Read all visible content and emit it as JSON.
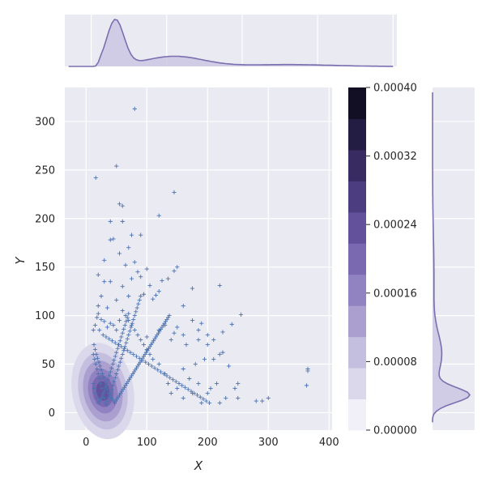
{
  "chart_data": {
    "type": "scatter",
    "title": "",
    "xlabel": "X",
    "ylabel": "Y",
    "xlim": [
      -35,
      405
    ],
    "ylim": [
      -18,
      335
    ],
    "xticks": [
      0,
      100,
      200,
      300,
      400
    ],
    "yticks": [
      0,
      50,
      100,
      150,
      200,
      250,
      300
    ],
    "grid": true,
    "marker": "+",
    "colors": {
      "panel_bg": "#eaeaf2",
      "grid": "#ffffff",
      "points": "#4c72b0",
      "kde_line": "#7b6fb0",
      "kde_fill": "#c8c2e0"
    },
    "colorbar": {
      "ticks": [
        "0.00000",
        "0.00008",
        "0.00016",
        "0.00024",
        "0.00032",
        "0.00040"
      ],
      "levels": [
        "#f1eff7",
        "#dcd8eb",
        "#c5bfdf",
        "#ab9fd0",
        "#9183c2",
        "#7a68b0",
        "#63519c",
        "#4c3c80",
        "#372b62",
        "#241d43",
        "#120f24"
      ]
    },
    "points": [
      [
        80,
        313
      ],
      [
        16,
        242
      ],
      [
        50,
        254
      ],
      [
        145,
        227
      ],
      [
        120,
        203
      ],
      [
        55,
        215
      ],
      [
        60,
        213
      ],
      [
        60,
        197
      ],
      [
        40,
        197
      ],
      [
        45,
        179
      ],
      [
        75,
        183
      ],
      [
        90,
        183
      ],
      [
        40,
        178
      ],
      [
        55,
        164
      ],
      [
        70,
        170
      ],
      [
        30,
        157
      ],
      [
        80,
        155
      ],
      [
        65,
        152
      ],
      [
        100,
        148
      ],
      [
        150,
        150
      ],
      [
        145,
        146
      ],
      [
        20,
        142
      ],
      [
        85,
        145
      ],
      [
        90,
        140
      ],
      [
        125,
        136
      ],
      [
        135,
        138
      ],
      [
        175,
        128
      ],
      [
        220,
        131
      ],
      [
        105,
        131
      ],
      [
        75,
        138
      ],
      [
        120,
        125
      ],
      [
        60,
        130
      ],
      [
        30,
        135
      ],
      [
        40,
        135
      ],
      [
        115,
        121
      ],
      [
        70,
        120
      ],
      [
        95,
        122
      ],
      [
        110,
        117
      ],
      [
        160,
        110
      ],
      [
        50,
        116
      ],
      [
        25,
        120
      ],
      [
        20,
        110
      ],
      [
        35,
        108
      ],
      [
        255,
        101
      ],
      [
        175,
        95
      ],
      [
        240,
        91
      ],
      [
        190,
        92
      ],
      [
        225,
        83
      ],
      [
        185,
        85
      ],
      [
        200,
        80
      ],
      [
        210,
        75
      ],
      [
        185,
        75
      ],
      [
        145,
        82
      ],
      [
        120,
        85
      ],
      [
        130,
        90
      ],
      [
        150,
        88
      ],
      [
        160,
        80
      ],
      [
        100,
        78
      ],
      [
        140,
        75
      ],
      [
        165,
        70
      ],
      [
        200,
        70
      ],
      [
        220,
        60
      ],
      [
        225,
        62
      ],
      [
        235,
        48
      ],
      [
        195,
        55
      ],
      [
        210,
        55
      ],
      [
        180,
        50
      ],
      [
        160,
        45
      ],
      [
        170,
        35
      ],
      [
        185,
        30
      ],
      [
        175,
        20
      ],
      [
        205,
        25
      ],
      [
        215,
        30
      ],
      [
        245,
        25
      ],
      [
        250,
        30
      ],
      [
        280,
        12
      ],
      [
        290,
        12
      ],
      [
        365,
        45
      ],
      [
        365,
        43
      ],
      [
        363,
        28
      ],
      [
        300,
        15
      ],
      [
        250,
        15
      ],
      [
        230,
        15
      ],
      [
        200,
        20
      ],
      [
        190,
        10
      ],
      [
        220,
        10
      ],
      [
        160,
        15
      ],
      [
        150,
        25
      ],
      [
        140,
        20
      ],
      [
        135,
        30
      ],
      [
        130,
        40
      ],
      [
        120,
        50
      ],
      [
        110,
        55
      ],
      [
        105,
        60
      ],
      [
        100,
        65
      ],
      [
        95,
        70
      ],
      [
        90,
        75
      ],
      [
        85,
        80
      ],
      [
        80,
        85
      ],
      [
        75,
        90
      ],
      [
        70,
        95
      ],
      [
        65,
        100
      ],
      [
        60,
        105
      ],
      [
        55,
        95
      ],
      [
        50,
        85
      ],
      [
        45,
        90
      ],
      [
        40,
        92
      ],
      [
        35,
        88
      ],
      [
        30,
        94
      ],
      [
        25,
        96
      ],
      [
        20,
        102
      ],
      [
        18,
        98
      ],
      [
        15,
        90
      ],
      [
        12,
        85
      ],
      [
        22,
        85
      ],
      [
        28,
        80
      ],
      [
        33,
        78
      ],
      [
        38,
        76
      ],
      [
        43,
        74
      ],
      [
        48,
        72
      ],
      [
        53,
        70
      ],
      [
        58,
        68
      ],
      [
        63,
        66
      ],
      [
        68,
        64
      ],
      [
        73,
        62
      ],
      [
        78,
        60
      ],
      [
        83,
        58
      ],
      [
        88,
        56
      ],
      [
        93,
        54
      ],
      [
        98,
        52
      ],
      [
        103,
        50
      ],
      [
        108,
        48
      ],
      [
        113,
        46
      ],
      [
        118,
        44
      ],
      [
        123,
        42
      ],
      [
        128,
        40
      ],
      [
        133,
        38
      ],
      [
        138,
        36
      ],
      [
        143,
        34
      ],
      [
        148,
        32
      ],
      [
        153,
        30
      ],
      [
        158,
        28
      ],
      [
        163,
        26
      ],
      [
        168,
        24
      ],
      [
        173,
        22
      ],
      [
        178,
        20
      ],
      [
        183,
        18
      ],
      [
        188,
        16
      ],
      [
        193,
        14
      ],
      [
        198,
        12
      ],
      [
        203,
        10
      ],
      [
        12,
        60
      ],
      [
        14,
        55
      ],
      [
        16,
        50
      ],
      [
        18,
        45
      ],
      [
        20,
        40
      ],
      [
        22,
        35
      ],
      [
        24,
        30
      ],
      [
        26,
        25
      ],
      [
        28,
        20
      ],
      [
        30,
        15
      ],
      [
        32,
        10
      ],
      [
        34,
        8
      ],
      [
        36,
        12
      ],
      [
        38,
        16
      ],
      [
        40,
        20
      ],
      [
        42,
        24
      ],
      [
        44,
        28
      ],
      [
        46,
        32
      ],
      [
        48,
        36
      ],
      [
        50,
        40
      ],
      [
        52,
        44
      ],
      [
        54,
        48
      ],
      [
        56,
        52
      ],
      [
        58,
        56
      ],
      [
        60,
        60
      ],
      [
        62,
        64
      ],
      [
        64,
        68
      ],
      [
        66,
        72
      ],
      [
        68,
        76
      ],
      [
        70,
        80
      ],
      [
        72,
        84
      ],
      [
        74,
        88
      ],
      [
        76,
        92
      ],
      [
        78,
        96
      ],
      [
        80,
        100
      ],
      [
        82,
        104
      ],
      [
        84,
        108
      ],
      [
        86,
        112
      ],
      [
        88,
        116
      ],
      [
        90,
        120
      ],
      [
        12,
        30
      ],
      [
        14,
        25
      ],
      [
        16,
        20
      ],
      [
        18,
        15
      ],
      [
        20,
        10
      ],
      [
        22,
        12
      ],
      [
        24,
        14
      ],
      [
        26,
        16
      ],
      [
        28,
        18
      ],
      [
        30,
        22
      ],
      [
        32,
        26
      ],
      [
        34,
        30
      ],
      [
        36,
        34
      ],
      [
        38,
        38
      ],
      [
        40,
        42
      ],
      [
        42,
        46
      ],
      [
        44,
        50
      ],
      [
        46,
        54
      ],
      [
        48,
        58
      ],
      [
        50,
        62
      ],
      [
        52,
        66
      ],
      [
        54,
        70
      ],
      [
        56,
        74
      ],
      [
        58,
        78
      ],
      [
        60,
        82
      ],
      [
        62,
        86
      ],
      [
        64,
        90
      ],
      [
        66,
        94
      ],
      [
        68,
        98
      ],
      [
        70,
        102
      ],
      [
        13,
        70
      ],
      [
        15,
        65
      ],
      [
        17,
        60
      ],
      [
        19,
        56
      ],
      [
        21,
        52
      ],
      [
        23,
        48
      ],
      [
        25,
        44
      ],
      [
        27,
        40
      ],
      [
        29,
        36
      ],
      [
        31,
        32
      ],
      [
        33,
        28
      ],
      [
        35,
        24
      ],
      [
        37,
        20
      ],
      [
        39,
        18
      ],
      [
        41,
        16
      ],
      [
        43,
        14
      ],
      [
        45,
        12
      ],
      [
        47,
        10
      ],
      [
        49,
        12
      ],
      [
        51,
        14
      ],
      [
        53,
        16
      ],
      [
        55,
        18
      ],
      [
        57,
        20
      ],
      [
        59,
        22
      ],
      [
        61,
        24
      ],
      [
        63,
        26
      ],
      [
        65,
        28
      ],
      [
        67,
        30
      ],
      [
        69,
        32
      ],
      [
        71,
        34
      ],
      [
        73,
        36
      ],
      [
        75,
        38
      ],
      [
        77,
        40
      ],
      [
        79,
        42
      ],
      [
        81,
        44
      ],
      [
        83,
        46
      ],
      [
        85,
        48
      ],
      [
        87,
        50
      ],
      [
        89,
        52
      ],
      [
        91,
        54
      ],
      [
        93,
        56
      ],
      [
        95,
        58
      ],
      [
        97,
        60
      ],
      [
        99,
        62
      ],
      [
        101,
        64
      ],
      [
        103,
        66
      ],
      [
        105,
        68
      ],
      [
        107,
        70
      ],
      [
        109,
        72
      ],
      [
        111,
        74
      ],
      [
        113,
        76
      ],
      [
        115,
        78
      ],
      [
        117,
        80
      ],
      [
        119,
        82
      ],
      [
        121,
        84
      ],
      [
        123,
        86
      ],
      [
        125,
        88
      ],
      [
        127,
        90
      ],
      [
        129,
        92
      ],
      [
        131,
        94
      ],
      [
        133,
        96
      ],
      [
        135,
        98
      ],
      [
        137,
        100
      ]
    ]
  }
}
